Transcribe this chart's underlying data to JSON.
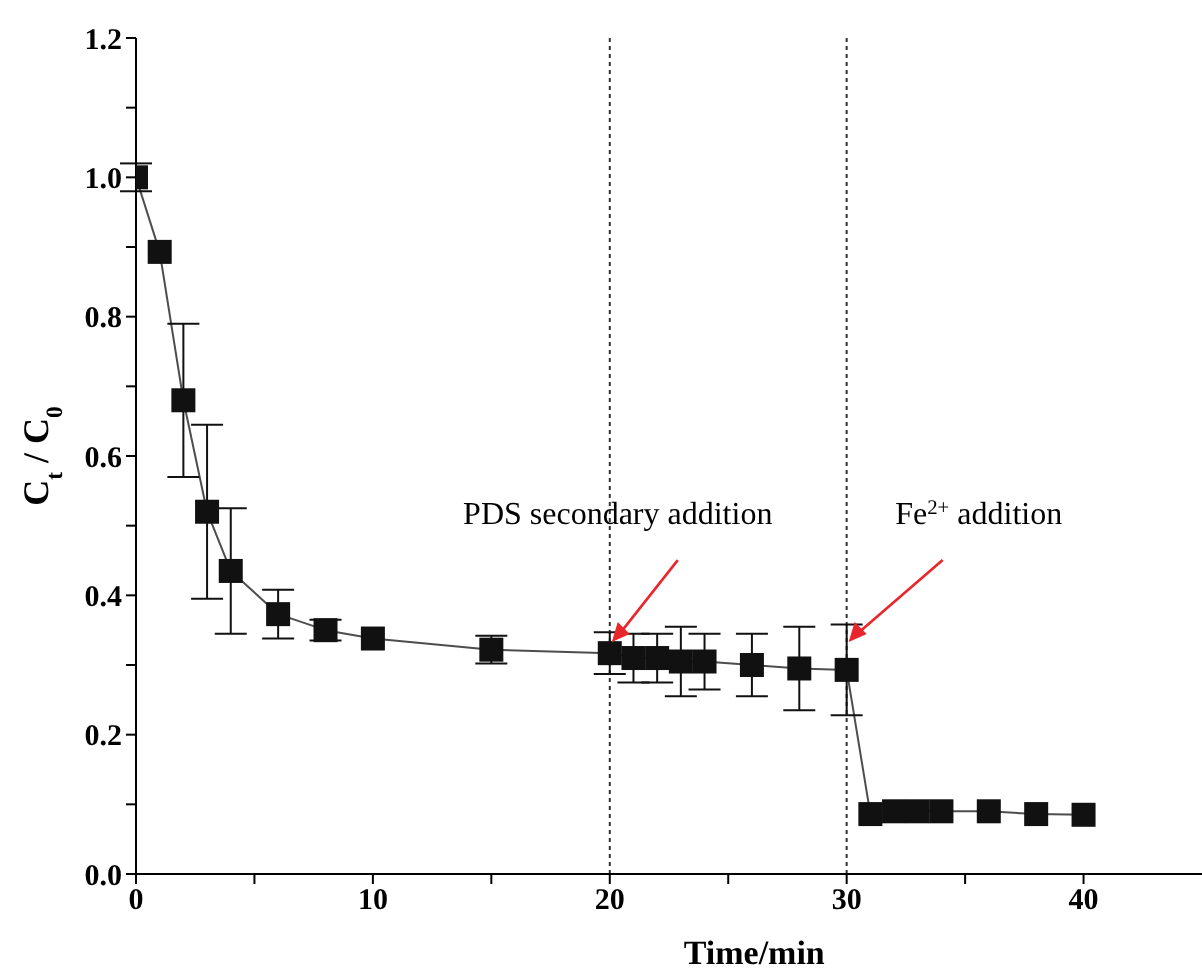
{
  "chart_data": {
    "type": "line",
    "xlabel": "Time/min",
    "ylabel": "C$_{t}$ / C$_{0}$",
    "x": [
      0,
      1,
      2,
      3,
      4,
      6,
      8,
      10,
      15,
      20,
      21,
      22,
      23,
      24,
      26,
      28,
      30,
      31,
      32,
      33,
      34,
      36,
      38,
      40
    ],
    "series": [
      {
        "color": "#111111",
        "values": [
          1.0,
          0.893,
          0.68,
          0.52,
          0.435,
          0.373,
          0.35,
          0.338,
          0.322,
          0.317,
          0.31,
          0.31,
          0.305,
          0.305,
          0.3,
          0.295,
          0.293,
          0.086,
          0.09,
          0.09,
          0.09,
          0.09,
          0.086,
          0.085
        ],
        "errors": [
          0.02,
          null,
          0.11,
          0.125,
          0.09,
          0.035,
          0.015,
          null,
          0.02,
          0.03,
          0.035,
          0.035,
          0.05,
          0.04,
          0.045,
          0.06,
          0.065,
          null,
          null,
          null,
          null,
          null,
          null,
          null
        ]
      }
    ],
    "xlim": [
      0,
      45
    ],
    "xticks": [
      0,
      {
        "value": 5,
        "label": null
      },
      10,
      {
        "value": 15,
        "label": null
      },
      20,
      {
        "value": 25,
        "label": null
      },
      30,
      {
        "value": 35,
        "label": null
      },
      40
    ],
    "ylim": [
      0,
      1.2
    ],
    "yticks": [
      {
        "value": 0,
        "label": "0.0"
      },
      {
        "value": 0.1,
        "label": null
      },
      0.2,
      {
        "value": 0.3,
        "label": null
      },
      0.4,
      {
        "value": 0.5,
        "label": null
      },
      0.6,
      {
        "value": 0.7,
        "label": null
      },
      0.8,
      {
        "value": 0.9,
        "label": null
      },
      {
        "value": 1,
        "label": "1.0"
      },
      {
        "value": 1.1,
        "label": null
      },
      1.2
    ],
    "ref_lines": [
      {
        "axis": "x",
        "value": 20,
        "color": "#333333",
        "line_style": "dotted"
      },
      {
        "axis": "x",
        "value": 30,
        "color": "#333333",
        "line_style": "dotted"
      }
    ],
    "annotations": [
      {
        "text": "PDS  secondary addition",
        "x": 20,
        "y": 0.33
      },
      {
        "text": "Fe$^{2+}$ addition",
        "x": 30,
        "y": 0.33
      }
    ],
    "marker": "square",
    "line_style": "solid",
    "grid": false,
    "legend": false
  }
}
